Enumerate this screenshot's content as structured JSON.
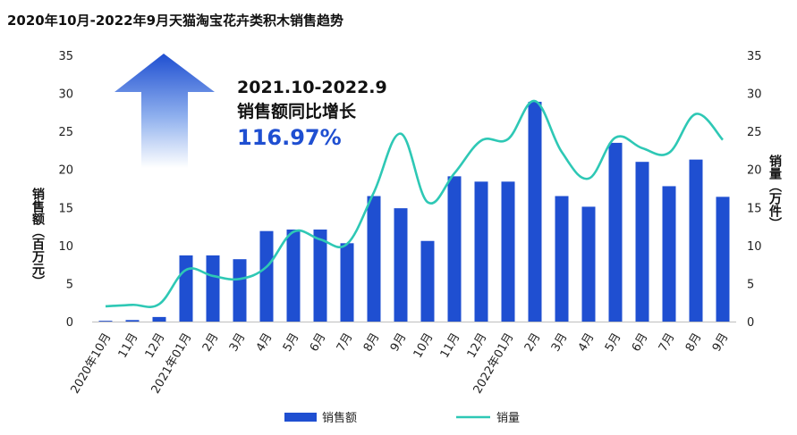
{
  "chart_data": {
    "type": "bar+line",
    "title": "2020年10月-2022年9月天猫淘宝花卉类积木销售趋势",
    "categories": [
      "2020年10月",
      "11月",
      "12月",
      "2021年01月",
      "2月",
      "3月",
      "4月",
      "5月",
      "6月",
      "7月",
      "8月",
      "9月",
      "10月",
      "11月",
      "12月",
      "2022年01月",
      "2月",
      "3月",
      "4月",
      "5月",
      "6月",
      "7月",
      "8月",
      "9月"
    ],
    "ylabel_left": "销售额（百万元）",
    "ylabel_right": "销量（万件）",
    "ylim_left": [
      0,
      35
    ],
    "ylim_right": [
      0,
      35
    ],
    "yticks": [
      0,
      5,
      10,
      15,
      20,
      25,
      30,
      35
    ],
    "series": [
      {
        "name": "销售额",
        "type": "bar",
        "axis": "left",
        "color": "#1f4fd1",
        "values": [
          0.1,
          0.2,
          0.6,
          8.7,
          8.7,
          8.2,
          11.9,
          12.1,
          12.1,
          10.3,
          16.5,
          14.9,
          10.6,
          19.1,
          18.4,
          18.4,
          28.9,
          16.5,
          15.1,
          23.5,
          21.0,
          17.8,
          21.3,
          16.4
        ]
      },
      {
        "name": "销量",
        "type": "line",
        "axis": "right",
        "color": "#2ec8b5",
        "values": [
          2.0,
          2.2,
          2.3,
          6.8,
          6.0,
          5.6,
          7.2,
          11.8,
          10.8,
          10.2,
          17.0,
          24.7,
          15.7,
          19.5,
          23.8,
          24.0,
          29.0,
          22.3,
          18.8,
          24.2,
          22.8,
          22.2,
          27.3,
          23.9
        ]
      }
    ],
    "legend": {
      "position": "bottom"
    },
    "annotation": {
      "line1": "2021.10-2022.9",
      "line2": "销售额同比增长",
      "line3": "116.97%"
    },
    "grid": false
  }
}
